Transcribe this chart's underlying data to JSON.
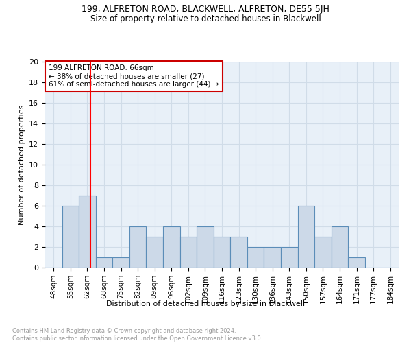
{
  "title1": "199, ALFRETON ROAD, BLACKWELL, ALFRETON, DE55 5JH",
  "title2": "Size of property relative to detached houses in Blackwell",
  "xlabel": "Distribution of detached houses by size in Blackwell",
  "ylabel": "Number of detached properties",
  "footnote": "Contains HM Land Registry data © Crown copyright and database right 2024.\nContains public sector information licensed under the Open Government Licence v3.0.",
  "bin_labels": [
    "48sqm",
    "55sqm",
    "62sqm",
    "68sqm",
    "75sqm",
    "82sqm",
    "89sqm",
    "96sqm",
    "102sqm",
    "109sqm",
    "116sqm",
    "123sqm",
    "130sqm",
    "136sqm",
    "143sqm",
    "150sqm",
    "157sqm",
    "164sqm",
    "171sqm",
    "177sqm",
    "184sqm"
  ],
  "counts": [
    0,
    6,
    7,
    1,
    1,
    4,
    3,
    4,
    3,
    4,
    3,
    3,
    2,
    2,
    2,
    6,
    3,
    4,
    1,
    0,
    0
  ],
  "property_sqm": 66,
  "bar_color": "#ccd9e8",
  "bar_edge_color": "#5b8db8",
  "annotation_text": "199 ALFRETON ROAD: 66sqm\n← 38% of detached houses are smaller (27)\n61% of semi-detached houses are larger (44) →",
  "annotation_box_color": "#ffffff",
  "annotation_box_edge": "#cc0000",
  "ylim": [
    0,
    20
  ],
  "yticks": [
    0,
    2,
    4,
    6,
    8,
    10,
    12,
    14,
    16,
    18,
    20
  ],
  "grid_color": "#d0dce8",
  "background_color": "#e8f0f8",
  "title1_fontsize": 9,
  "title2_fontsize": 8.5,
  "footnote_color": "#999999"
}
